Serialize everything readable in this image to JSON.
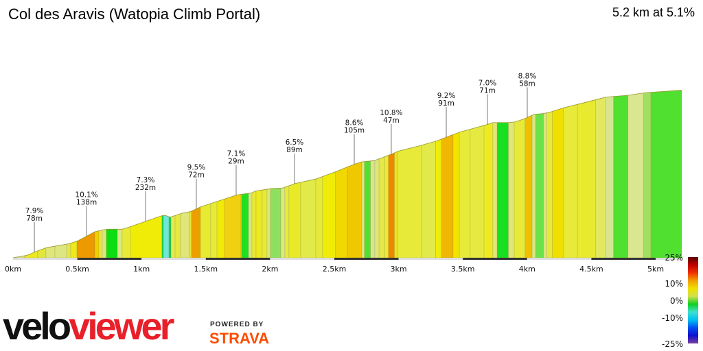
{
  "header": {
    "title": "Col des Aravis (Watopia Climb Portal)",
    "summary": "5.2 km at 5.1%"
  },
  "chart_data": {
    "type": "area",
    "title": "Col des Aravis (Watopia Climb Portal)",
    "xlabel": "",
    "ylabel": "",
    "x_unit": "km",
    "xlim": [
      0,
      5.2
    ],
    "x_ticks": [
      "0km",
      "0.5km",
      "1km",
      "1.5km",
      "2km",
      "2.5km",
      "3km",
      "3.5km",
      "4km",
      "4.5km",
      "5km"
    ],
    "profile": [
      [
        0,
        0
      ],
      [
        0.112,
        4
      ],
      [
        0.192,
        11
      ],
      [
        0.262,
        16
      ],
      [
        0.433,
        22
      ],
      [
        0.497,
        26
      ],
      [
        0.636,
        41
      ],
      [
        0.7,
        44
      ],
      [
        0.737,
        45
      ],
      [
        0.849,
        45
      ],
      [
        0.913,
        49
      ],
      [
        1.154,
        66
      ],
      [
        1.181,
        67
      ],
      [
        1.223,
        64
      ],
      [
        1.314,
        70
      ],
      [
        1.384,
        73
      ],
      [
        1.458,
        80
      ],
      [
        1.608,
        90
      ],
      [
        1.741,
        99
      ],
      [
        1.779,
        100
      ],
      [
        1.854,
        102
      ],
      [
        1.886,
        105
      ],
      [
        2.009,
        109
      ],
      [
        2.099,
        110
      ],
      [
        2.196,
        117
      ],
      [
        2.356,
        124
      ],
      [
        2.516,
        136
      ],
      [
        2.65,
        147
      ],
      [
        2.713,
        151
      ],
      [
        2.81,
        153
      ],
      [
        2.89,
        159
      ],
      [
        2.954,
        164
      ],
      [
        2.997,
        168
      ],
      [
        3.157,
        176
      ],
      [
        3.296,
        184
      ],
      [
        3.397,
        192
      ],
      [
        3.478,
        198
      ],
      [
        3.584,
        204
      ],
      [
        3.691,
        210
      ],
      [
        3.734,
        213
      ],
      [
        3.852,
        213
      ],
      [
        3.905,
        214
      ],
      [
        3.98,
        219
      ],
      [
        4.054,
        226
      ],
      [
        4.119,
        227
      ],
      [
        4.172,
        229
      ],
      [
        4.279,
        236
      ],
      [
        4.439,
        244
      ],
      [
        4.535,
        249
      ],
      [
        4.61,
        253
      ],
      [
        4.786,
        256
      ],
      [
        4.92,
        260
      ],
      [
        5.203,
        264
      ]
    ],
    "segments": [
      [
        0,
        "#d8e08a"
      ],
      [
        0.091,
        "#ecea1c"
      ],
      [
        0.192,
        "#e3e63a"
      ],
      [
        0.256,
        "#dfe67a"
      ],
      [
        0.326,
        "#dde680"
      ],
      [
        0.417,
        "#e3e64c"
      ],
      [
        0.449,
        "#f0e81a"
      ],
      [
        0.497,
        "#ec9a00"
      ],
      [
        0.636,
        "#f0d000"
      ],
      [
        0.668,
        "#e8e64a"
      ],
      [
        0.694,
        "#dfe47a"
      ],
      [
        0.726,
        "#0ddd10"
      ],
      [
        0.812,
        "#d8e78a"
      ],
      [
        0.849,
        "#e8ea3a"
      ],
      [
        0.913,
        "#f0ec08"
      ],
      [
        1.159,
        "#20d040"
      ],
      [
        1.17,
        "#6de8d8"
      ],
      [
        1.213,
        "#20d040"
      ],
      [
        1.229,
        "#e8e850"
      ],
      [
        1.261,
        "#e6ea40"
      ],
      [
        1.303,
        "#dfe67a"
      ],
      [
        1.373,
        "#e8e63a"
      ],
      [
        1.389,
        "#eca000"
      ],
      [
        1.458,
        "#e6ea30"
      ],
      [
        1.538,
        "#e8ea38"
      ],
      [
        1.587,
        "#f0ea08"
      ],
      [
        1.645,
        "#f0d010"
      ],
      [
        1.774,
        "#dde67a"
      ],
      [
        1.779,
        "#20e020"
      ],
      [
        1.832,
        "#d8e68a"
      ],
      [
        1.859,
        "#e8ea3a"
      ],
      [
        1.891,
        "#eceb20"
      ],
      [
        1.939,
        "#e8ea3a"
      ],
      [
        1.976,
        "#dde67a"
      ],
      [
        2.003,
        "#90e060"
      ],
      [
        2.083,
        "#dfe67a"
      ],
      [
        2.115,
        "#e8ea3a"
      ],
      [
        2.147,
        "#e8ea28"
      ],
      [
        2.238,
        "#e2ea4a"
      ],
      [
        2.356,
        "#e6ea38"
      ],
      [
        2.409,
        "#f0ec08"
      ],
      [
        2.509,
        "#f0d800"
      ],
      [
        2.602,
        "#f0c800"
      ],
      [
        2.713,
        "#dfe67a"
      ],
      [
        2.735,
        "#50e030"
      ],
      [
        2.781,
        "#d8e68a"
      ],
      [
        2.815,
        "#dfe67a"
      ],
      [
        2.848,
        "#e6e84a"
      ],
      [
        2.893,
        "#eeea30"
      ],
      [
        2.921,
        "#ee8800"
      ],
      [
        2.967,
        "#f0e020"
      ],
      [
        2.995,
        "#e8ea3a"
      ],
      [
        3.177,
        "#e2ea4a"
      ],
      [
        3.288,
        "#f0ec08"
      ],
      [
        3.334,
        "#f0b800"
      ],
      [
        3.424,
        "#f0e400"
      ],
      [
        3.473,
        "#e8ea3a"
      ],
      [
        3.557,
        "#e6ea40"
      ],
      [
        3.665,
        "#eeec20"
      ],
      [
        3.733,
        "#dfe67a"
      ],
      [
        3.767,
        "#18e020"
      ],
      [
        3.854,
        "#dfe67a"
      ],
      [
        3.9,
        "#e8ea3a"
      ],
      [
        3.984,
        "#f0c000"
      ],
      [
        4.039,
        "#dde67a"
      ],
      [
        4.067,
        "#6ce24a"
      ],
      [
        4.127,
        "#dde67a"
      ],
      [
        4.154,
        "#e8ea3a"
      ],
      [
        4.197,
        "#f0e000"
      ],
      [
        4.281,
        "#e8ea3a"
      ],
      [
        4.392,
        "#e8ea30"
      ],
      [
        4.534,
        "#e2e860"
      ],
      [
        4.609,
        "#d6e690"
      ],
      [
        4.673,
        "#50e030"
      ],
      [
        4.785,
        "#dae690"
      ],
      [
        4.907,
        "#a0e060"
      ],
      [
        4.963,
        "#50e030"
      ]
    ],
    "annotations": [
      {
        "km": 0.166,
        "grade": "7.9%",
        "length": "78m"
      },
      {
        "km": 0.572,
        "grade": "10.1%",
        "length": "138m"
      },
      {
        "km": 1.031,
        "grade": "7.3%",
        "length": "232m"
      },
      {
        "km": 1.426,
        "grade": "9.5%",
        "length": "72m"
      },
      {
        "km": 1.736,
        "grade": "7.1%",
        "length": "29m"
      },
      {
        "km": 2.19,
        "grade": "6.5%",
        "length": "89m"
      },
      {
        "km": 2.655,
        "grade": "8.6%",
        "length": "105m"
      },
      {
        "km": 2.943,
        "grade": "10.8%",
        "length": "47m"
      },
      {
        "km": 3.371,
        "grade": "9.2%",
        "length": "91m"
      },
      {
        "km": 3.691,
        "grade": "7.0%",
        "length": "71m"
      },
      {
        "km": 4.001,
        "grade": "8.8%",
        "length": "58m"
      }
    ],
    "legend": {
      "labels": [
        "25%",
        "10%",
        "0%",
        "-10%",
        "-25%"
      ],
      "values": [
        25,
        10,
        0,
        -10,
        -25
      ],
      "gradient": [
        "#5a0000",
        "#c00000",
        "#f03000",
        "#f0a000",
        "#f0e000",
        "#d0e050",
        "#10d020",
        "#40e0d0",
        "#00c0f0",
        "#0050f0",
        "#1010d0",
        "#7a40a0"
      ]
    }
  },
  "branding": {
    "logo_velo": "velo",
    "logo_viewer": "viewer",
    "powered_by": "POWERED BY",
    "strava": "STRAVA"
  }
}
